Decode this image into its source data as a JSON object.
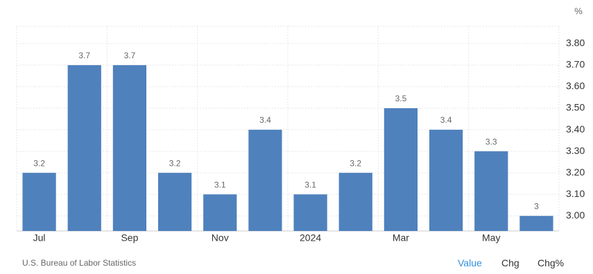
{
  "chart_data": {
    "type": "bar",
    "y_unit": "%",
    "categories": [
      "Jul",
      null,
      "Sep",
      null,
      "Nov",
      null,
      "2024",
      null,
      "Mar",
      null,
      "May",
      null
    ],
    "values": [
      3.2,
      3.7,
      3.7,
      3.2,
      3.1,
      3.4,
      3.1,
      3.2,
      3.5,
      3.4,
      3.3,
      3
    ],
    "color": "#4f81bd",
    "ylim": [
      2.93,
      3.88
    ],
    "yticks": [
      {
        "value": 3.0,
        "label": "3.00"
      },
      {
        "value": 3.1,
        "label": "3.10"
      },
      {
        "value": 3.2,
        "label": "3.20"
      },
      {
        "value": 3.3,
        "label": "3.30"
      },
      {
        "value": 3.4,
        "label": "3.40"
      },
      {
        "value": 3.5,
        "label": "3.50"
      },
      {
        "value": 3.6,
        "label": "3.60"
      },
      {
        "value": 3.7,
        "label": "3.70"
      },
      {
        "value": 3.8,
        "label": "3.80"
      }
    ],
    "grid": true,
    "source": "U.S. Bureau of Labor Statistics"
  },
  "controls": [
    "Value",
    "Chg",
    "Chg%"
  ]
}
